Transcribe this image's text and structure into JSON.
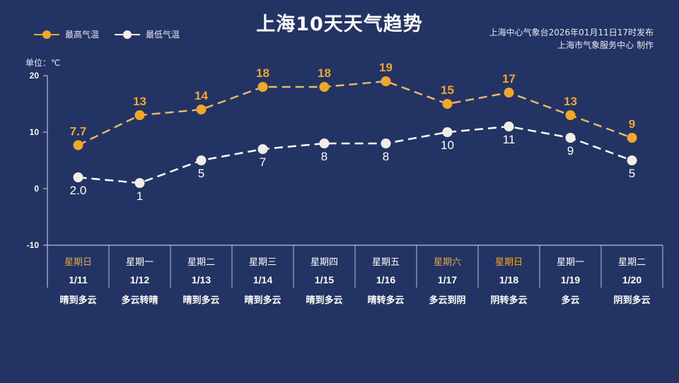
{
  "title": "上海10天天气趋势",
  "legend": {
    "high_label": "最高气温",
    "low_label": "最低气温"
  },
  "source": {
    "line1": "上海中心气象台2026年01月11日17时发布",
    "line2": "上海市气象服务中心  制作"
  },
  "unit_label": "单位：℃",
  "colors": {
    "background": "#233364",
    "high": "#f0a82a",
    "high_line": "#e8b86a",
    "low": "#f3ede6",
    "weekend": "#f0a82a",
    "axis": "#b8c0d6"
  },
  "days": [
    {
      "weekday": "星期日",
      "date": "1/11",
      "weather": "晴到多云",
      "weekend": true
    },
    {
      "weekday": "星期一",
      "date": "1/12",
      "weather": "多云转晴",
      "weekend": false
    },
    {
      "weekday": "星期二",
      "date": "1/13",
      "weather": "晴到多云",
      "weekend": false
    },
    {
      "weekday": "星期三",
      "date": "1/14",
      "weather": "晴到多云",
      "weekend": false
    },
    {
      "weekday": "星期四",
      "date": "1/15",
      "weather": "晴到多云",
      "weekend": false
    },
    {
      "weekday": "星期五",
      "date": "1/16",
      "weather": "晴转多云",
      "weekend": false
    },
    {
      "weekday": "星期六",
      "date": "1/17",
      "weather": "多云到阴",
      "weekend": true
    },
    {
      "weekday": "星期日",
      "date": "1/18",
      "weather": "阴转多云",
      "weekend": true
    },
    {
      "weekday": "星期一",
      "date": "1/19",
      "weather": "多云",
      "weekend": false
    },
    {
      "weekday": "星期二",
      "date": "1/20",
      "weather": "阴到多云",
      "weekend": false
    }
  ],
  "chart_data": {
    "type": "line",
    "title": "上海10天天气趋势",
    "xlabel": "",
    "ylabel": "单位：℃",
    "categories": [
      "1/11",
      "1/12",
      "1/13",
      "1/14",
      "1/15",
      "1/16",
      "1/17",
      "1/18",
      "1/19",
      "1/20"
    ],
    "series": [
      {
        "name": "最高气温",
        "values": [
          7.7,
          13,
          14,
          18,
          18,
          19,
          15,
          17,
          13,
          9
        ],
        "labels": [
          "7.7",
          "13",
          "14",
          "18",
          "18",
          "19",
          "15",
          "17",
          "13",
          "9"
        ]
      },
      {
        "name": "最低气温",
        "values": [
          2.0,
          1,
          5,
          7,
          8,
          8,
          10,
          11,
          9,
          5
        ],
        "labels": [
          "2.0",
          "1",
          "5",
          "7",
          "8",
          "8",
          "10",
          "11",
          "9",
          "5"
        ]
      }
    ],
    "yticks": [
      20,
      10,
      0,
      -10
    ],
    "ylim": [
      -10,
      20
    ],
    "grid": false,
    "legend_position": "top-left",
    "line_style": "dashed"
  }
}
